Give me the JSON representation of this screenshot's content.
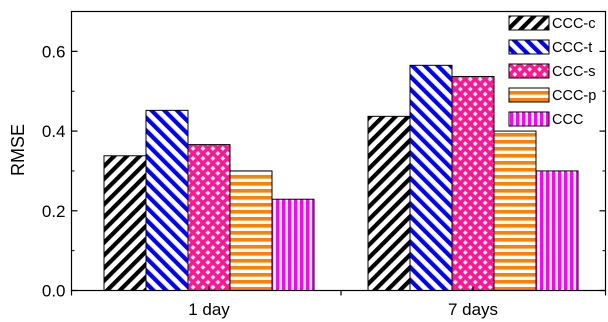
{
  "chart_data": {
    "type": "bar",
    "title": "",
    "xlabel": "",
    "ylabel": "RMSE",
    "ylim": [
      0,
      0.7
    ],
    "yticks": [
      0.0,
      0.2,
      0.4,
      0.6
    ],
    "ytick_labels": [
      "0.0",
      "0.2",
      "0.4",
      "0.6"
    ],
    "categories": [
      "1 day",
      "7 days"
    ],
    "grid": false,
    "legend_position": "top-right",
    "series": [
      {
        "name": "CCC-c",
        "values": [
          0.338,
          0.437
        ],
        "color": "#000000",
        "pattern": "diagonal-up"
      },
      {
        "name": "CCC-t",
        "values": [
          0.452,
          0.565
        ],
        "color": "#0000ff",
        "pattern": "diagonal-down"
      },
      {
        "name": "CCC-s",
        "values": [
          0.366,
          0.537
        ],
        "color": "#ff1493",
        "pattern": "crosshatch"
      },
      {
        "name": "CCC-p",
        "values": [
          0.3,
          0.4
        ],
        "color": "#ff8000",
        "pattern": "horizontal"
      },
      {
        "name": "CCC",
        "values": [
          0.229,
          0.3
        ],
        "color": "#ff00ff",
        "pattern": "vertical"
      }
    ]
  }
}
